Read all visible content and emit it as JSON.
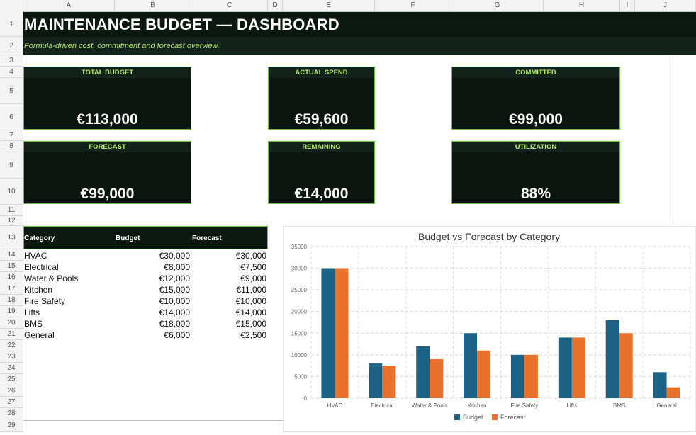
{
  "columns": [
    "A",
    "B",
    "C",
    "D",
    "E",
    "F",
    "G",
    "H",
    "I",
    "J"
  ],
  "rows": [
    "1",
    "2",
    "3",
    "4",
    "5",
    "6",
    "7",
    "8",
    "9",
    "10",
    "11",
    "12",
    "13",
    "14",
    "15",
    "16",
    "17",
    "18",
    "19",
    "20",
    "21",
    "22",
    "23",
    "24",
    "25",
    "26",
    "27",
    "28",
    "29"
  ],
  "header": {
    "title": "MAINTENANCE BUDGET — DASHBOARD",
    "subtitle": "Formula-driven cost, commitment and forecast overview."
  },
  "kpis": [
    {
      "label": "TOTAL BUDGET",
      "value": "€113,000"
    },
    {
      "label": "ACTUAL SPEND",
      "value": "€59,600"
    },
    {
      "label": "COMMITTED",
      "value": "€99,000"
    },
    {
      "label": "FORECAST",
      "value": "€99,000"
    },
    {
      "label": "REMAINING",
      "value": "€14,000"
    },
    {
      "label": "UTILIZATION",
      "value": "88%"
    }
  ],
  "table": {
    "headers": [
      "Category",
      "Budget",
      "Forecast"
    ],
    "rows": [
      [
        "HVAC",
        "€30,000",
        "€30,000"
      ],
      [
        "Electrical",
        "€8,000",
        "€7,500"
      ],
      [
        "Water & Pools",
        "€12,000",
        "€9,000"
      ],
      [
        "Kitchen",
        "€15,000",
        "€11,000"
      ],
      [
        "Fire Safety",
        "€10,000",
        "€10,000"
      ],
      [
        "Lifts",
        "€14,000",
        "€14,000"
      ],
      [
        "BMS",
        "€18,000",
        "€15,000"
      ],
      [
        "General",
        "€6,000",
        "€2,500"
      ]
    ]
  },
  "colors": {
    "budget": "#1b6285",
    "forecast": "#e8722c",
    "accent": "#b6e86b",
    "dark": "#0c1710"
  },
  "chart_data": {
    "type": "bar",
    "title": "Budget vs Forecast by Category",
    "categories": [
      "HVAC",
      "Electrical",
      "Water & Pools",
      "Kitchen",
      "Fire Safety",
      "Lifts",
      "BMS",
      "General"
    ],
    "series": [
      {
        "name": "Budget",
        "values": [
          30000,
          8000,
          12000,
          15000,
          10000,
          14000,
          18000,
          6000
        ]
      },
      {
        "name": "Forecast",
        "values": [
          30000,
          7500,
          9000,
          11000,
          10000,
          14000,
          15000,
          2500
        ]
      }
    ],
    "ylim": [
      0,
      35000
    ],
    "yticks": [
      "0",
      "5000",
      "10000",
      "15000",
      "20000",
      "25000",
      "30000",
      "35000"
    ],
    "grid": true,
    "legend": "bottom"
  }
}
